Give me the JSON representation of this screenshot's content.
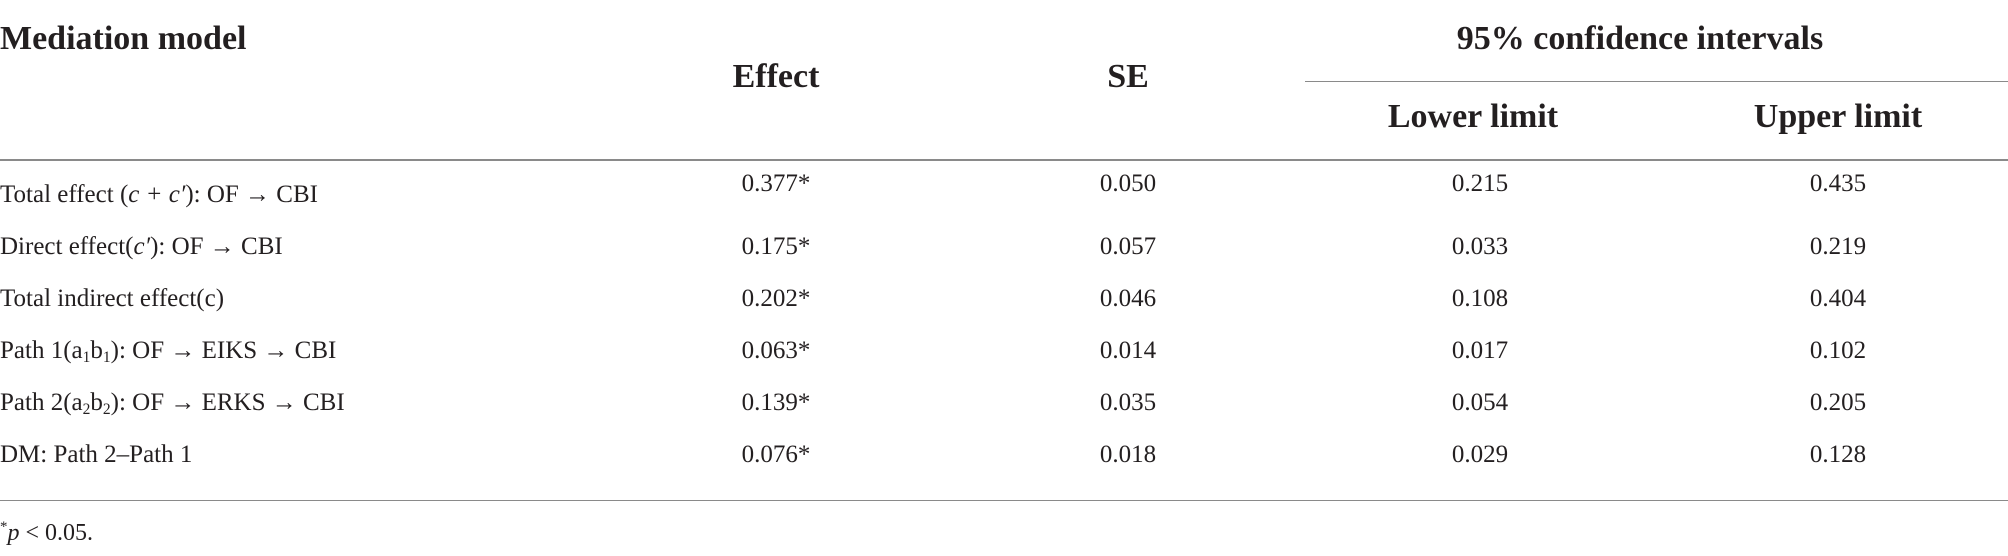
{
  "table": {
    "headers": {
      "model": "Mediation model",
      "effect": "Effect",
      "se": "SE",
      "ci": "95% confidence intervals",
      "lower": "Lower limit",
      "upper": "Upper limit"
    },
    "rows": [
      {
        "label_prefix": "Total effect (",
        "label_italic": "c + c′",
        "label_suffix": "): OF → CBI",
        "effect": "0.377*",
        "se": "0.050",
        "lower": "0.215",
        "upper": "0.435"
      },
      {
        "label_prefix": "Direct effect(",
        "label_italic": "c′",
        "label_suffix": "): OF → CBI",
        "effect": "0.175*",
        "se": "0.057",
        "lower": "0.033",
        "upper": "0.219"
      },
      {
        "label": "Total indirect effect(c)",
        "effect": "0.202*",
        "se": "0.046",
        "lower": "0.108",
        "upper": "0.404"
      },
      {
        "label_prefix": "Path 1(a",
        "sub1": "1",
        "label_mid": "b",
        "sub2": "1",
        "label_suffix": "): OF → EIKS → CBI",
        "effect": "0.063*",
        "se": "0.014",
        "lower": "0.017",
        "upper": "0.102"
      },
      {
        "label_prefix": "Path 2(a",
        "sub1": "2",
        "label_mid": "b",
        "sub2": "2",
        "label_suffix": "): OF → ERKS → CBI",
        "effect": "0.139*",
        "se": "0.035",
        "lower": "0.054",
        "upper": "0.205"
      },
      {
        "label": "DM: Path 2–Path 1",
        "effect": "0.076*",
        "se": "0.018",
        "lower": "0.029",
        "upper": "0.128"
      }
    ]
  },
  "footnote": {
    "star": "*",
    "p": "p",
    "rest": " < 0.05."
  }
}
